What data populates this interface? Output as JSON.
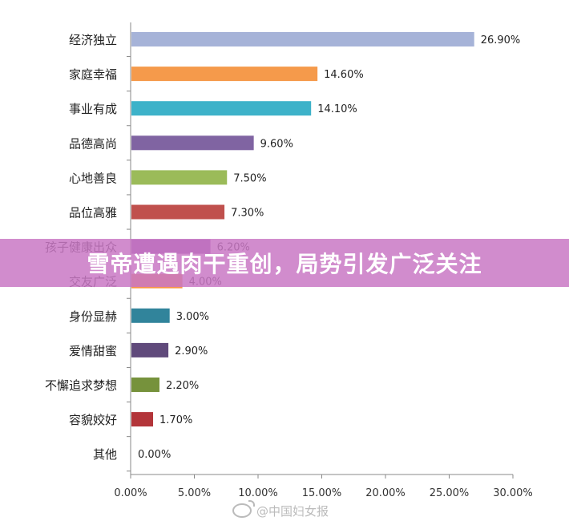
{
  "chart_data": {
    "type": "bar",
    "orientation": "horizontal",
    "categories": [
      "经济独立",
      "家庭幸福",
      "事业有成",
      "品德高尚",
      "心地善良",
      "品位高雅",
      "孩子健康出众",
      "交友广泛",
      "身份显赫",
      "爱情甜蜜",
      "不懈追求梦想",
      "容貌姣好",
      "其他"
    ],
    "values": [
      26.9,
      14.6,
      14.1,
      9.6,
      7.5,
      7.3,
      6.2,
      4.0,
      3.0,
      2.9,
      2.2,
      1.7,
      0.0
    ],
    "value_labels": [
      "26.90%",
      "14.60%",
      "14.10%",
      "9.60%",
      "7.50%",
      "7.30%",
      "6.20%",
      "4.00%",
      "3.00%",
      "2.90%",
      "2.20%",
      "1.70%",
      "0.00%"
    ],
    "colors": [
      "#a6b3d8",
      "#f59a4b",
      "#3db2c9",
      "#8064a2",
      "#9bbb59",
      "#c0504d",
      "#8e4fa5",
      "#f79646",
      "#31849b",
      "#604a7b",
      "#76923c",
      "#b3353a",
      "#4f81bd"
    ],
    "xlim": [
      0,
      30
    ],
    "xticks": [
      "0.00%",
      "5.00%",
      "10.00%",
      "15.00%",
      "20.00%",
      "25.00%",
      "30.00%"
    ],
    "grid": false,
    "legend": "none",
    "title": "",
    "xlabel": "",
    "ylabel": ""
  },
  "overlay": {
    "headline": "雪帝遭遇肉干重创，局势引发广泛关注"
  },
  "watermark": {
    "text": "@中国妇女报",
    "icon": "weibo-icon"
  }
}
